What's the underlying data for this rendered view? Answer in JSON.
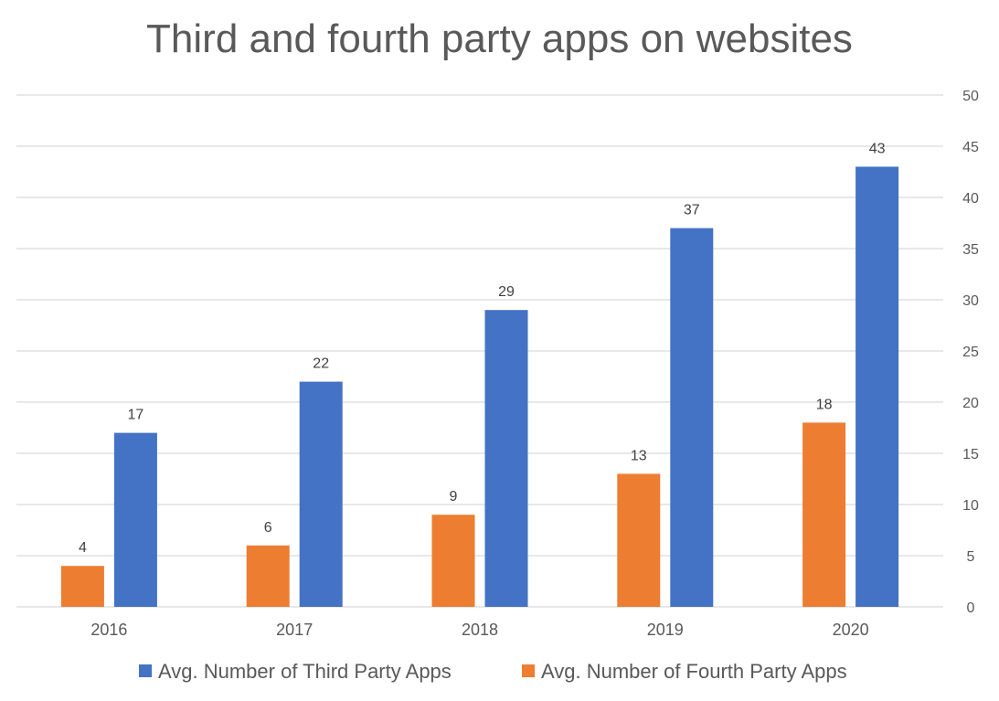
{
  "chart_data": {
    "type": "bar",
    "title": "Third and fourth party apps on websites",
    "categories": [
      "2016",
      "2017",
      "2018",
      "2019",
      "2020"
    ],
    "series": [
      {
        "name": "Avg. Number of Fourth Party Apps",
        "values": [
          4,
          6,
          9,
          13,
          18
        ],
        "color": "#ED7D31"
      },
      {
        "name": "Avg. Number of Third Party Apps",
        "values": [
          17,
          22,
          29,
          37,
          43
        ],
        "color": "#4472C4"
      }
    ],
    "legend_order": [
      1,
      0
    ],
    "ylim": [
      0,
      50
    ],
    "yticks": [
      0,
      5,
      10,
      15,
      20,
      25,
      30,
      35,
      40,
      45,
      50
    ],
    "y_axis_position": "right",
    "grid": true,
    "legend_position": "bottom",
    "data_labels": true
  }
}
